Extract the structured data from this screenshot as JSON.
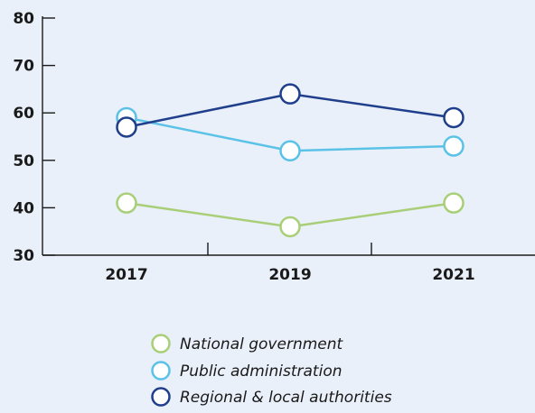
{
  "chart_data": {
    "type": "line",
    "title": "",
    "xlabel": "",
    "ylabel": "",
    "categories": [
      "2017",
      "2019",
      "2021"
    ],
    "ylim": [
      30,
      80
    ],
    "yticks": [
      "30",
      "40",
      "50",
      "60",
      "70",
      "80"
    ],
    "grid": false,
    "legend_position": "bottom",
    "series": [
      {
        "name": "National government",
        "values": [
          41,
          36,
          41
        ],
        "color": "#a8cf78"
      },
      {
        "name": "Public administration",
        "values": [
          59,
          52,
          53
        ],
        "color": "#5bc2e7"
      },
      {
        "name": "Regional & local authorities",
        "values": [
          57,
          64,
          59
        ],
        "color": "#1f3f8c"
      }
    ]
  }
}
